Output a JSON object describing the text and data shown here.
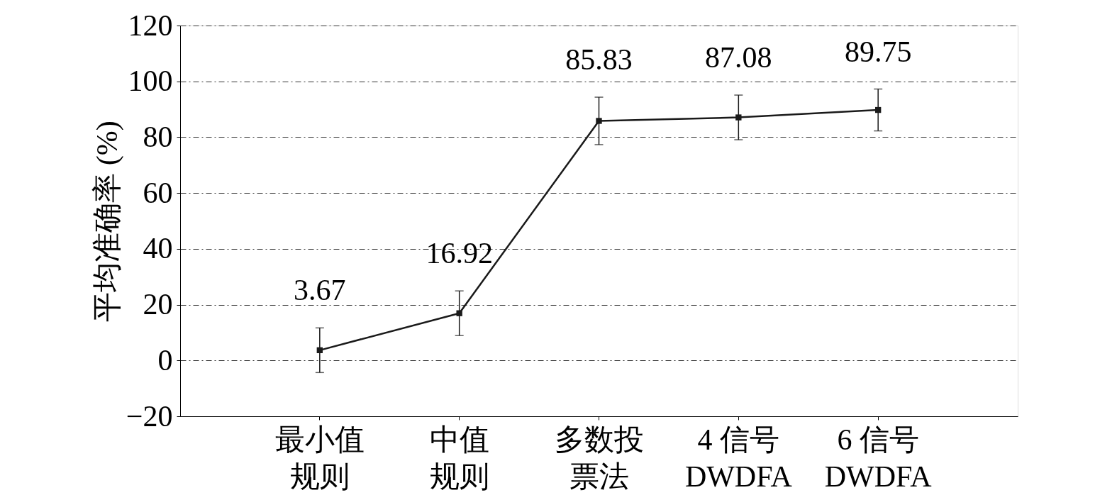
{
  "chart_data": {
    "type": "line",
    "ylabel": "平均准确率 (%)",
    "categories": [
      "最小值规则",
      "中值规则",
      "多数投票法",
      "4 信号 DWDFA",
      "6 信号 DWDFA"
    ],
    "values": [
      3.67,
      16.92,
      85.83,
      87.08,
      89.75
    ],
    "errors": [
      8,
      8,
      8.5,
      8,
      7.5
    ],
    "color": "#1a1a1a",
    "marker": "square",
    "line_style": "solid",
    "data_labels": true,
    "ylim": [
      -20,
      120
    ],
    "yticks": [
      -20,
      0,
      20,
      40,
      60,
      80,
      100,
      120
    ],
    "grid": "y"
  }
}
